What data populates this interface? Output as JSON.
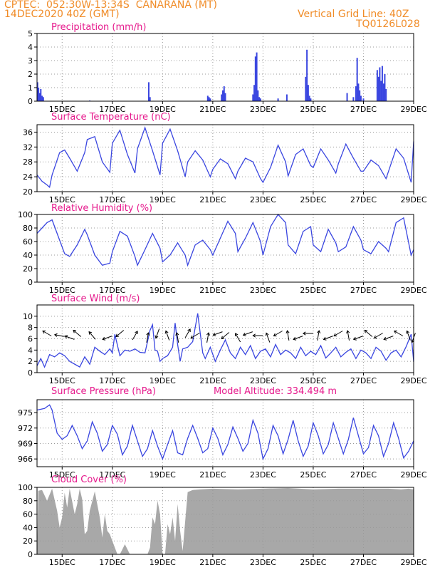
{
  "header": {
    "line1": "CPTEC:  052:30W-13:34S  CANARANA (MT)",
    "line2": "14DEC2020 40Z (GMT)",
    "right1": "Vertical Grid Line: 40Z",
    "right2": "TQ0126L028"
  },
  "colors": {
    "header": "#f08c28",
    "title": "#e6198c",
    "series": "#3a46e0",
    "cloud": "#a8a8a8",
    "grid": "#999999"
  },
  "x_axis": {
    "start_day": 14.0,
    "end_day": 29.0,
    "tick_days": [
      15,
      17,
      19,
      21,
      23,
      25,
      27,
      29
    ],
    "tick_labels": [
      "15DEC",
      "17DEC",
      "19DEC",
      "21DEC",
      "23DEC",
      "25DEC",
      "27DEC",
      "29DEC"
    ]
  },
  "chart_data": [
    {
      "id": "precip",
      "type": "bar",
      "title": "Precipitation (mm/h)",
      "ylim": [
        0,
        5
      ],
      "yticks": [
        0,
        1,
        2,
        3,
        4,
        5
      ],
      "grid": true,
      "x": [
        14.02,
        14.06,
        14.1,
        14.15,
        14.2,
        14.25,
        16.1,
        18.45,
        18.5,
        20.8,
        20.85,
        20.9,
        21.35,
        21.4,
        21.45,
        21.5,
        22.6,
        22.65,
        22.7,
        22.75,
        22.8,
        22.85,
        22.9,
        23.6,
        23.95,
        24.7,
        24.75,
        24.8,
        24.85,
        24.9,
        26.35,
        26.6,
        26.7,
        26.75,
        26.8,
        26.85,
        26.9,
        27.0,
        27.55,
        27.6,
        27.65,
        27.7,
        27.75,
        27.8,
        27.85,
        27.9
      ],
      "values": [
        1.4,
        1.0,
        0.6,
        0.9,
        0.4,
        0.3,
        0.05,
        1.4,
        0.3,
        0.4,
        0.3,
        0.2,
        0.5,
        0.8,
        1.1,
        0.6,
        0.5,
        1.2,
        3.3,
        3.6,
        0.8,
        0.3,
        0.2,
        0.2,
        0.5,
        1.8,
        3.8,
        1.2,
        0.4,
        0.2,
        0.6,
        0.3,
        1.1,
        3.2,
        1.3,
        0.8,
        0.4,
        0.2,
        2.3,
        1.8,
        2.5,
        1.5,
        2.6,
        1.3,
        2.0,
        0.9
      ]
    },
    {
      "id": "temperature",
      "type": "line",
      "title": "Surface Temperature (nC)",
      "ylim": [
        20,
        38
      ],
      "yticks": [
        20,
        24,
        28,
        32,
        36
      ],
      "grid": true,
      "x": [
        14.0,
        14.2,
        14.4,
        14.5,
        14.6,
        14.9,
        15.1,
        15.3,
        15.6,
        15.9,
        16.0,
        16.3,
        16.6,
        16.9,
        17.0,
        17.3,
        17.6,
        17.9,
        18.0,
        18.3,
        18.6,
        18.9,
        19.0,
        19.3,
        19.6,
        19.9,
        20.0,
        20.3,
        20.6,
        20.9,
        21.0,
        21.3,
        21.6,
        21.9,
        22.0,
        22.3,
        22.6,
        22.9,
        23.0,
        23.3,
        23.6,
        23.9,
        24.0,
        24.3,
        24.6,
        24.9,
        25.0,
        25.3,
        25.6,
        25.9,
        26.0,
        26.3,
        26.6,
        26.9,
        27.0,
        27.3,
        27.6,
        27.9,
        28.0,
        28.3,
        28.6,
        28.9,
        29.0
      ],
      "values": [
        24.5,
        22.8,
        21.8,
        21.2,
        24.5,
        30.5,
        31.2,
        29.0,
        25.5,
        30.5,
        34.0,
        34.8,
        28.0,
        25.2,
        33.0,
        36.5,
        30.0,
        25.0,
        31.5,
        37.2,
        31.0,
        24.5,
        33.0,
        36.8,
        31.0,
        24.0,
        28.0,
        31.0,
        28.5,
        24.0,
        26.0,
        28.8,
        27.5,
        23.5,
        25.5,
        29.0,
        28.0,
        23.5,
        22.5,
        26.5,
        32.5,
        28.0,
        24.2,
        30.0,
        31.5,
        27.0,
        26.5,
        31.5,
        28.5,
        25.0,
        27.5,
        32.8,
        29.0,
        25.5,
        25.5,
        28.5,
        27.0,
        23.5,
        25.5,
        31.5,
        29.0,
        22.5,
        33.5
      ]
    },
    {
      "id": "humidity",
      "type": "line",
      "title": "Relative Humidity (%)",
      "ylim": [
        0,
        100
      ],
      "yticks": [
        0,
        20,
        40,
        60,
        80,
        100
      ],
      "grid": true,
      "x": [
        14.0,
        14.2,
        14.4,
        14.6,
        14.9,
        15.1,
        15.3,
        15.6,
        15.9,
        16.0,
        16.3,
        16.6,
        16.9,
        17.0,
        17.3,
        17.6,
        17.9,
        18.0,
        18.3,
        18.6,
        18.9,
        19.0,
        19.3,
        19.6,
        19.9,
        20.0,
        20.3,
        20.6,
        20.9,
        21.0,
        21.3,
        21.6,
        21.9,
        22.0,
        22.3,
        22.6,
        22.9,
        23.0,
        23.3,
        23.6,
        23.9,
        24.0,
        24.3,
        24.6,
        24.9,
        25.0,
        25.3,
        25.6,
        25.9,
        26.0,
        26.3,
        26.6,
        26.9,
        27.0,
        27.3,
        27.6,
        27.9,
        28.0,
        28.3,
        28.6,
        28.9,
        29.0
      ],
      "values": [
        72,
        80,
        88,
        92,
        62,
        42,
        38,
        55,
        78,
        70,
        40,
        25,
        28,
        45,
        75,
        68,
        38,
        25,
        48,
        72,
        50,
        30,
        40,
        58,
        40,
        25,
        55,
        62,
        48,
        40,
        65,
        90,
        72,
        45,
        65,
        88,
        60,
        40,
        82,
        100,
        88,
        55,
        42,
        75,
        82,
        55,
        45,
        78,
        58,
        45,
        52,
        82,
        62,
        48,
        42,
        60,
        50,
        45,
        88,
        95,
        40,
        48
      ]
    },
    {
      "id": "wind",
      "type": "line",
      "title": "Surface Wind (m/s)",
      "ylim": [
        0,
        12
      ],
      "yticks": [
        0,
        2,
        4,
        6,
        8,
        10
      ],
      "grid": true,
      "x": [
        14.0,
        14.15,
        14.3,
        14.5,
        14.7,
        14.9,
        15.1,
        15.3,
        15.5,
        15.7,
        15.9,
        16.1,
        16.3,
        16.5,
        16.7,
        16.9,
        17.0,
        17.1,
        17.3,
        17.5,
        17.7,
        17.9,
        18.1,
        18.3,
        18.5,
        18.6,
        18.7,
        18.8,
        18.9,
        19.0,
        19.2,
        19.4,
        19.5,
        19.6,
        19.7,
        19.8,
        20.0,
        20.2,
        20.4,
        20.5,
        20.6,
        20.7,
        20.9,
        21.1,
        21.3,
        21.5,
        21.7,
        21.9,
        22.1,
        22.3,
        22.5,
        22.7,
        22.9,
        23.1,
        23.3,
        23.5,
        23.7,
        23.9,
        24.1,
        24.3,
        24.5,
        24.7,
        24.9,
        25.1,
        25.3,
        25.5,
        25.7,
        25.9,
        26.1,
        26.3,
        26.5,
        26.7,
        26.9,
        27.1,
        27.3,
        27.5,
        27.7,
        27.9,
        28.1,
        28.3,
        28.5,
        28.7,
        28.9,
        29.0
      ],
      "values": [
        1.2,
        2.5,
        1.0,
        3.2,
        2.8,
        3.5,
        3.0,
        2.0,
        1.5,
        1.0,
        2.8,
        1.5,
        4.5,
        3.8,
        3.2,
        4.2,
        3.5,
        6.8,
        3.0,
        4.0,
        3.8,
        4.2,
        3.6,
        3.5,
        7.5,
        8.5,
        4.0,
        3.8,
        2.0,
        2.5,
        3.0,
        4.5,
        8.8,
        5.0,
        2.0,
        4.2,
        4.5,
        5.5,
        10.5,
        7.0,
        3.5,
        2.5,
        4.5,
        2.0,
        4.0,
        5.8,
        3.5,
        2.5,
        4.5,
        3.2,
        4.8,
        2.5,
        3.8,
        4.2,
        2.8,
        5.0,
        3.2,
        4.0,
        3.5,
        2.5,
        4.5,
        3.0,
        3.8,
        3.2,
        4.8,
        2.6,
        3.5,
        4.5,
        2.8,
        3.6,
        4.2,
        2.5,
        4.0,
        3.5,
        2.5,
        4.5,
        3.8,
        2.2,
        3.5,
        4.0,
        2.8,
        4.6,
        6.8,
        2.0
      ]
    },
    {
      "id": "pressure",
      "type": "line",
      "title": "Surface Pressure (hPa)",
      "annotation": "Model Altitude: 334.494 m",
      "ylim": [
        964.5,
        977.5
      ],
      "yticks": [
        966,
        969,
        972,
        975
      ],
      "grid": true,
      "x": [
        14.0,
        14.3,
        14.5,
        14.6,
        14.8,
        15.0,
        15.2,
        15.4,
        15.6,
        15.8,
        16.0,
        16.2,
        16.4,
        16.6,
        16.8,
        17.0,
        17.2,
        17.4,
        17.6,
        17.8,
        18.0,
        18.2,
        18.4,
        18.6,
        18.8,
        19.0,
        19.2,
        19.4,
        19.6,
        19.8,
        20.0,
        20.2,
        20.4,
        20.6,
        20.8,
        21.0,
        21.2,
        21.4,
        21.6,
        21.8,
        22.0,
        22.2,
        22.4,
        22.6,
        22.8,
        23.0,
        23.2,
        23.4,
        23.6,
        23.8,
        24.0,
        24.2,
        24.4,
        24.6,
        24.8,
        25.0,
        25.2,
        25.4,
        25.6,
        25.8,
        26.0,
        26.2,
        26.4,
        26.6,
        26.8,
        27.0,
        27.2,
        27.4,
        27.6,
        27.8,
        28.0,
        28.2,
        28.4,
        28.6,
        28.8,
        29.0
      ],
      "values": [
        975.5,
        975.8,
        976.5,
        975.5,
        971.0,
        969.8,
        970.5,
        972.5,
        970.5,
        968.0,
        969.5,
        973.2,
        971.0,
        967.5,
        968.8,
        972.5,
        970.8,
        966.8,
        968.5,
        972.5,
        969.5,
        966.5,
        968.0,
        971.5,
        968.5,
        966.0,
        968.8,
        971.5,
        967.2,
        966.8,
        970.0,
        972.5,
        970.0,
        967.2,
        968.0,
        972.0,
        970.0,
        966.8,
        968.8,
        972.2,
        970.0,
        967.5,
        969.0,
        973.5,
        971.0,
        966.0,
        968.0,
        972.5,
        970.5,
        967.0,
        969.8,
        973.5,
        969.5,
        966.5,
        968.5,
        973.0,
        970.5,
        967.0,
        968.8,
        973.0,
        970.0,
        967.0,
        969.8,
        974.0,
        970.5,
        967.0,
        968.2,
        972.5,
        970.5,
        966.5,
        969.0,
        973.0,
        970.0,
        966.2,
        967.5,
        969.5
      ]
    },
    {
      "id": "cloud",
      "type": "area",
      "title": "Cloud Cover (%)",
      "ylim": [
        0,
        100
      ],
      "yticks": [
        0,
        20,
        40,
        60,
        80,
        100
      ],
      "grid": true,
      "x": [
        14.0,
        14.05,
        14.2,
        14.4,
        14.6,
        14.8,
        14.9,
        15.0,
        15.1,
        15.2,
        15.3,
        15.5,
        15.6,
        15.7,
        15.8,
        15.9,
        16.0,
        16.1,
        16.3,
        16.5,
        16.6,
        16.7,
        16.8,
        16.9,
        17.0,
        17.1,
        17.2,
        17.3,
        17.5,
        17.7,
        18.0,
        18.2,
        18.4,
        18.5,
        18.6,
        18.7,
        18.8,
        18.9,
        19.0,
        19.1,
        19.2,
        19.3,
        19.4,
        19.5,
        19.6,
        19.7,
        19.8,
        20.0,
        20.2,
        20.5,
        21.0,
        22.0,
        23.0,
        24.0,
        25.0,
        26.0,
        27.0,
        28.0,
        28.5,
        28.8,
        29.0
      ],
      "values": [
        0,
        95,
        96,
        80,
        98,
        65,
        40,
        55,
        92,
        70,
        98,
        60,
        75,
        98,
        82,
        30,
        35,
        65,
        94,
        55,
        25,
        60,
        35,
        30,
        20,
        10,
        0,
        0,
        15,
        0,
        0,
        0,
        0,
        10,
        55,
        45,
        80,
        60,
        0,
        0,
        45,
        30,
        55,
        20,
        75,
        35,
        5,
        93,
        96,
        97,
        98,
        97,
        98,
        99,
        97,
        98,
        98,
        98,
        97,
        98,
        97
      ]
    }
  ],
  "wind_arrows": {
    "note": "",
    "x": [
      14.4,
      14.9,
      15.3,
      15.6,
      16.2,
      16.8,
      17.3,
      17.9,
      18.4,
      18.8,
      19.2,
      19.6,
      20.0,
      20.3,
      20.8,
      21.2,
      21.5,
      22.0,
      22.4,
      22.8,
      23.2,
      23.6,
      24.0,
      24.4,
      24.8,
      25.2,
      25.6,
      26.0,
      26.4,
      26.8,
      27.2,
      27.6,
      28.0,
      28.4,
      28.8,
      29.0
    ],
    "angle_deg": [
      -150,
      -170,
      -160,
      -140,
      -130,
      -200,
      -220,
      -60,
      -80,
      -250,
      -110,
      -100,
      -60,
      -210,
      -80,
      -200,
      -220,
      -120,
      -200,
      -180,
      -110,
      -210,
      -100,
      -200,
      -180,
      -80,
      -200,
      -210,
      -100,
      -200,
      -140,
      -210,
      -200,
      -150,
      -110,
      -250
    ]
  }
}
